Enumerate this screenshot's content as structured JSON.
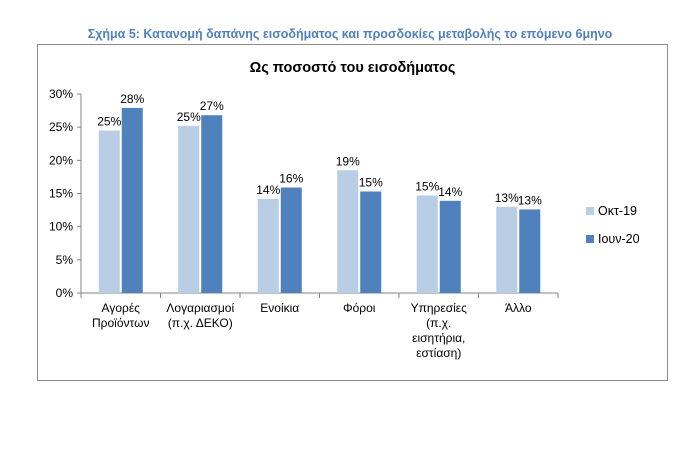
{
  "figure_caption": "Σχήμα 5: Κατανομή δαπάνης εισοδήματος και προσδοκίες μεταβολής το επόμενο 6μηνο",
  "chart_data": {
    "type": "bar",
    "title": "Ως ποσοστό του εισοδήματος",
    "categories": [
      [
        "Αγορές",
        "Προϊόντων"
      ],
      [
        "Λογαριασμοί",
        "(π.χ. ΔΕΚΟ)"
      ],
      [
        "Ενοίκια"
      ],
      [
        "Φόροι"
      ],
      [
        "Υπηρεσίες",
        "(π.χ.",
        "εισητήρια,",
        "εστίαση)"
      ],
      [
        "Άλλο"
      ]
    ],
    "series": [
      {
        "name": "Οκτ-19",
        "color": "#b9cde5",
        "values": [
          24.5,
          25.2,
          14.2,
          18.5,
          14.7,
          13.0
        ],
        "labels": [
          "25%",
          "25%",
          "14%",
          "19%",
          "15%",
          "13%"
        ]
      },
      {
        "name": "Ιουν-20",
        "color": "#4f81bd",
        "values": [
          27.9,
          26.8,
          15.9,
          15.3,
          13.9,
          12.6
        ],
        "labels": [
          "28%",
          "27%",
          "16%",
          "15%",
          "14%",
          "13%"
        ]
      }
    ],
    "ylim": [
      0,
      30
    ],
    "yticks": [
      0,
      5,
      10,
      15,
      20,
      25,
      30
    ],
    "ytick_labels": [
      "0%",
      "5%",
      "10%",
      "15%",
      "20%",
      "25%",
      "30%"
    ],
    "grid": false,
    "legend_position": "right"
  }
}
